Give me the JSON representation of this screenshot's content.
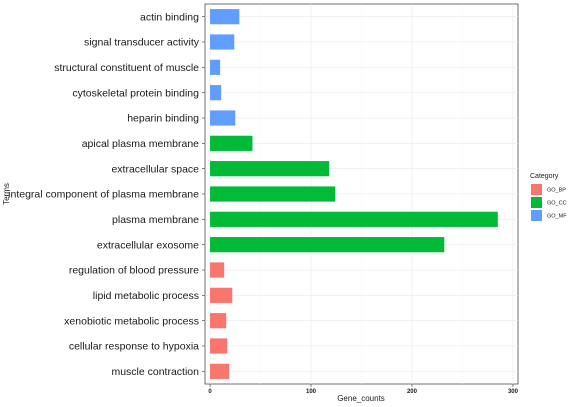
{
  "chart_data": {
    "type": "bar",
    "orientation": "horizontal",
    "xlabel": "Gene_counts",
    "ylabel": "Terms",
    "xlim": [
      -5,
      305
    ],
    "x_ticks": [
      0,
      100,
      200,
      300
    ],
    "grid": true,
    "legend_position": "right",
    "legend_title": "Category",
    "categories_order": [
      "GO_BP",
      "GO_CC",
      "GO_MF"
    ],
    "colors": {
      "GO_BP": "#F8766D",
      "GO_CC": "#00BA38",
      "GO_MF": "#619CFF"
    },
    "bars": [
      {
        "term": "actin binding",
        "value": 29,
        "category": "GO_MF"
      },
      {
        "term": "signal transducer activity",
        "value": 24,
        "category": "GO_MF"
      },
      {
        "term": "structural constituent of muscle",
        "value": 10,
        "category": "GO_MF"
      },
      {
        "term": "cytoskeletal protein binding",
        "value": 11,
        "category": "GO_MF"
      },
      {
        "term": "heparin binding",
        "value": 25,
        "category": "GO_MF"
      },
      {
        "term": "apical plasma membrane",
        "value": 42,
        "category": "GO_CC"
      },
      {
        "term": "extracellular space",
        "value": 118,
        "category": "GO_CC"
      },
      {
        "term": "integral component of plasma membrane",
        "value": 124,
        "category": "GO_CC"
      },
      {
        "term": "plasma membrane",
        "value": 285,
        "category": "GO_CC"
      },
      {
        "term": "extracellular exosome",
        "value": 232,
        "category": "GO_CC"
      },
      {
        "term": "regulation of blood pressure",
        "value": 14,
        "category": "GO_BP"
      },
      {
        "term": "lipid metabolic process",
        "value": 22,
        "category": "GO_BP"
      },
      {
        "term": "xenobiotic metabolic process",
        "value": 16,
        "category": "GO_BP"
      },
      {
        "term": "cellular response to hypoxia",
        "value": 17,
        "category": "GO_BP"
      },
      {
        "term": "muscle contraction",
        "value": 19,
        "category": "GO_BP"
      }
    ]
  }
}
